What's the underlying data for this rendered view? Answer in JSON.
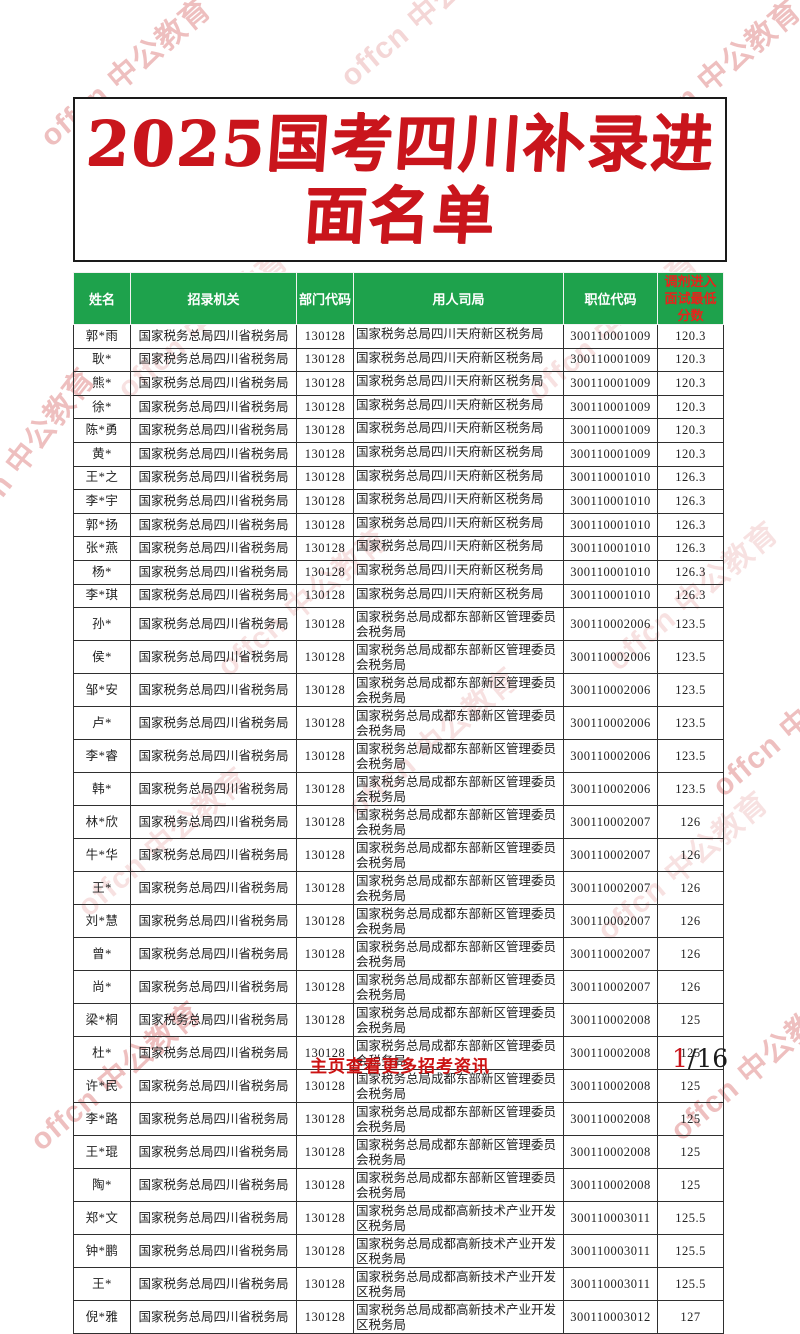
{
  "title": {
    "line1": "2025国考四川补录进",
    "line2": "面名单"
  },
  "watermark": {
    "text": "offcn 中公教育"
  },
  "footer": {
    "text": "主页查看更多招考资讯",
    "page_current": "1",
    "page_total": "/16"
  },
  "colors": {
    "header_green": "#1ea24c",
    "title_red": "#c9151c",
    "score_header_red": "#e8221b",
    "footer_red": "#cc1212",
    "watermark_pink": "#e08a8a"
  },
  "table": {
    "columns": [
      "姓名",
      "招录机关",
      "部门代码",
      "用人司局",
      "职位代码",
      "调剂进入面试最低分数"
    ],
    "rows": [
      [
        "郭*雨",
        "国家税务总局四川省税务局",
        "130128",
        "国家税务总局四川天府新区税务局",
        "300110001009",
        "120.3"
      ],
      [
        "耿*",
        "国家税务总局四川省税务局",
        "130128",
        "国家税务总局四川天府新区税务局",
        "300110001009",
        "120.3"
      ],
      [
        "熊*",
        "国家税务总局四川省税务局",
        "130128",
        "国家税务总局四川天府新区税务局",
        "300110001009",
        "120.3"
      ],
      [
        "徐*",
        "国家税务总局四川省税务局",
        "130128",
        "国家税务总局四川天府新区税务局",
        "300110001009",
        "120.3"
      ],
      [
        "陈*勇",
        "国家税务总局四川省税务局",
        "130128",
        "国家税务总局四川天府新区税务局",
        "300110001009",
        "120.3"
      ],
      [
        "黄*",
        "国家税务总局四川省税务局",
        "130128",
        "国家税务总局四川天府新区税务局",
        "300110001009",
        "120.3"
      ],
      [
        "王*之",
        "国家税务总局四川省税务局",
        "130128",
        "国家税务总局四川天府新区税务局",
        "300110001010",
        "126.3"
      ],
      [
        "李*宇",
        "国家税务总局四川省税务局",
        "130128",
        "国家税务总局四川天府新区税务局",
        "300110001010",
        "126.3"
      ],
      [
        "郭*扬",
        "国家税务总局四川省税务局",
        "130128",
        "国家税务总局四川天府新区税务局",
        "300110001010",
        "126.3"
      ],
      [
        "张*燕",
        "国家税务总局四川省税务局",
        "130128",
        "国家税务总局四川天府新区税务局",
        "300110001010",
        "126.3"
      ],
      [
        "杨*",
        "国家税务总局四川省税务局",
        "130128",
        "国家税务总局四川天府新区税务局",
        "300110001010",
        "126.3"
      ],
      [
        "李*琪",
        "国家税务总局四川省税务局",
        "130128",
        "国家税务总局四川天府新区税务局",
        "300110001010",
        "126.3"
      ],
      [
        "孙*",
        "国家税务总局四川省税务局",
        "130128",
        "国家税务总局成都东部新区管理委员会税务局",
        "300110002006",
        "123.5"
      ],
      [
        "侯*",
        "国家税务总局四川省税务局",
        "130128",
        "国家税务总局成都东部新区管理委员会税务局",
        "300110002006",
        "123.5"
      ],
      [
        "邹*安",
        "国家税务总局四川省税务局",
        "130128",
        "国家税务总局成都东部新区管理委员会税务局",
        "300110002006",
        "123.5"
      ],
      [
        "卢*",
        "国家税务总局四川省税务局",
        "130128",
        "国家税务总局成都东部新区管理委员会税务局",
        "300110002006",
        "123.5"
      ],
      [
        "李*睿",
        "国家税务总局四川省税务局",
        "130128",
        "国家税务总局成都东部新区管理委员会税务局",
        "300110002006",
        "123.5"
      ],
      [
        "韩*",
        "国家税务总局四川省税务局",
        "130128",
        "国家税务总局成都东部新区管理委员会税务局",
        "300110002006",
        "123.5"
      ],
      [
        "林*欣",
        "国家税务总局四川省税务局",
        "130128",
        "国家税务总局成都东部新区管理委员会税务局",
        "300110002007",
        "126"
      ],
      [
        "牛*华",
        "国家税务总局四川省税务局",
        "130128",
        "国家税务总局成都东部新区管理委员会税务局",
        "300110002007",
        "126"
      ],
      [
        "王*",
        "国家税务总局四川省税务局",
        "130128",
        "国家税务总局成都东部新区管理委员会税务局",
        "300110002007",
        "126"
      ],
      [
        "刘*慧",
        "国家税务总局四川省税务局",
        "130128",
        "国家税务总局成都东部新区管理委员会税务局",
        "300110002007",
        "126"
      ],
      [
        "曾*",
        "国家税务总局四川省税务局",
        "130128",
        "国家税务总局成都东部新区管理委员会税务局",
        "300110002007",
        "126"
      ],
      [
        "尚*",
        "国家税务总局四川省税务局",
        "130128",
        "国家税务总局成都东部新区管理委员会税务局",
        "300110002007",
        "126"
      ],
      [
        "梁*桐",
        "国家税务总局四川省税务局",
        "130128",
        "国家税务总局成都东部新区管理委员会税务局",
        "300110002008",
        "125"
      ],
      [
        "杜*",
        "国家税务总局四川省税务局",
        "130128",
        "国家税务总局成都东部新区管理委员会税务局",
        "300110002008",
        "125"
      ],
      [
        "许*民",
        "国家税务总局四川省税务局",
        "130128",
        "国家税务总局成都东部新区管理委员会税务局",
        "300110002008",
        "125"
      ],
      [
        "李*路",
        "国家税务总局四川省税务局",
        "130128",
        "国家税务总局成都东部新区管理委员会税务局",
        "300110002008",
        "125"
      ],
      [
        "王*琨",
        "国家税务总局四川省税务局",
        "130128",
        "国家税务总局成都东部新区管理委员会税务局",
        "300110002008",
        "125"
      ],
      [
        "陶*",
        "国家税务总局四川省税务局",
        "130128",
        "国家税务总局成都东部新区管理委员会税务局",
        "300110002008",
        "125"
      ],
      [
        "郑*文",
        "国家税务总局四川省税务局",
        "130128",
        "国家税务总局成都高新技术产业开发区税务局",
        "300110003011",
        "125.5"
      ],
      [
        "钟*鹏",
        "国家税务总局四川省税务局",
        "130128",
        "国家税务总局成都高新技术产业开发区税务局",
        "300110003011",
        "125.5"
      ],
      [
        "王*",
        "国家税务总局四川省税务局",
        "130128",
        "国家税务总局成都高新技术产业开发区税务局",
        "300110003011",
        "125.5"
      ],
      [
        "倪*雅",
        "国家税务总局四川省税务局",
        "130128",
        "国家税务总局成都高新技术产业开发区税务局",
        "300110003012",
        "127"
      ]
    ]
  }
}
